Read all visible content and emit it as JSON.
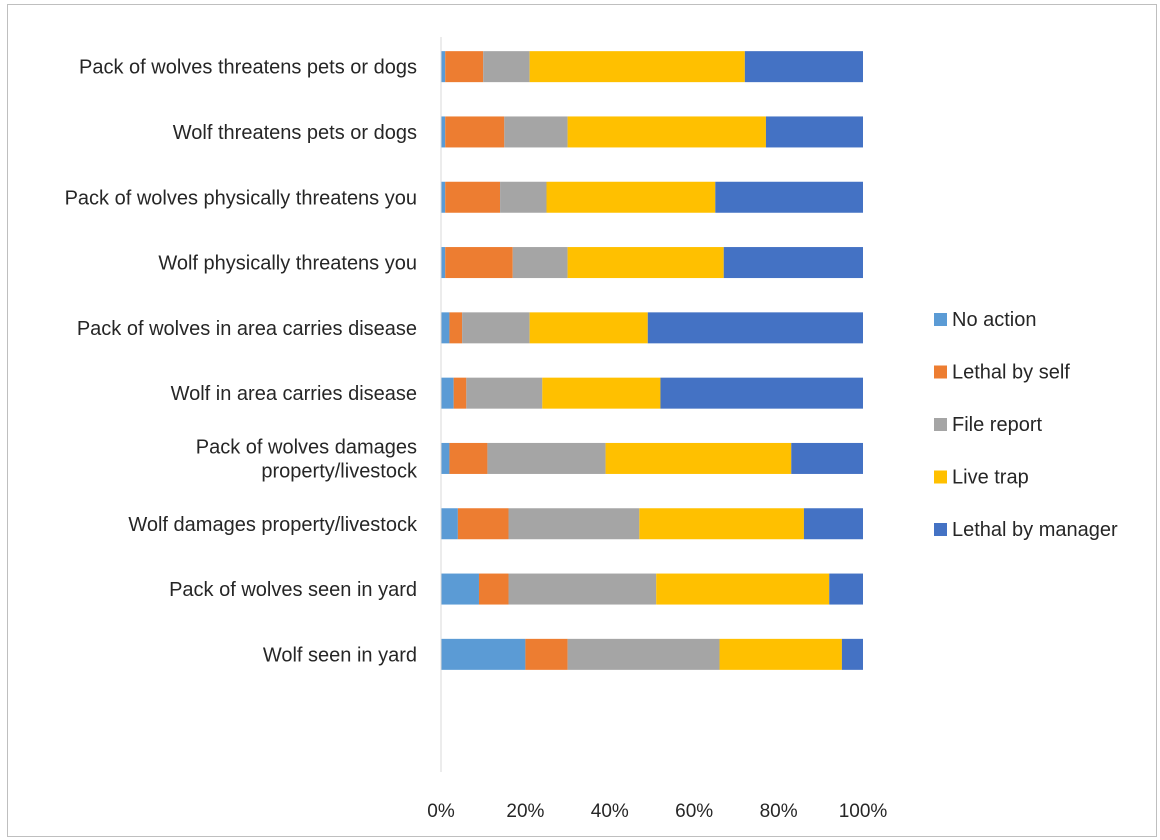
{
  "chart_data": {
    "type": "bar",
    "orientation": "horizontal",
    "stacked": "percent",
    "categories": [
      [
        "Pack of wolves threatens pets or dogs"
      ],
      [
        "Wolf threatens pets or dogs"
      ],
      [
        "Pack of wolves physically threatens you"
      ],
      [
        "Wolf physically threatens you"
      ],
      [
        "Pack of wolves in area carries disease"
      ],
      [
        "Wolf in area carries disease"
      ],
      [
        "Pack of wolves damages",
        "property/livestock"
      ],
      [
        "Wolf damages property/livestock"
      ],
      [
        "Pack of wolves seen in yard"
      ],
      [
        "Wolf seen in yard"
      ]
    ],
    "series": [
      {
        "name": "No action",
        "color": "#5b9bd5",
        "values": [
          1,
          1,
          1,
          1,
          2,
          3,
          2,
          4,
          9,
          20
        ]
      },
      {
        "name": "Lethal by self",
        "color": "#ed7d31",
        "values": [
          9,
          14,
          13,
          16,
          3,
          3,
          9,
          12,
          7,
          10
        ]
      },
      {
        "name": "File report",
        "color": "#a5a5a5",
        "values": [
          11,
          15,
          11,
          13,
          16,
          18,
          28,
          31,
          35,
          36
        ]
      },
      {
        "name": "Live trap",
        "color": "#ffc000",
        "values": [
          51,
          47,
          40,
          37,
          28,
          28,
          44,
          39,
          41,
          29
        ]
      },
      {
        "name": "Lethal by manager",
        "color": "#4472c4",
        "values": [
          28,
          23,
          35,
          33,
          51,
          48,
          17,
          14,
          8,
          5
        ]
      }
    ],
    "x_ticks": [
      "0%",
      "20%",
      "40%",
      "60%",
      "80%",
      "100%"
    ],
    "xlim": [
      0,
      100
    ],
    "legend_position": "right",
    "grid": false,
    "title": "",
    "xlabel": "",
    "ylabel": ""
  }
}
